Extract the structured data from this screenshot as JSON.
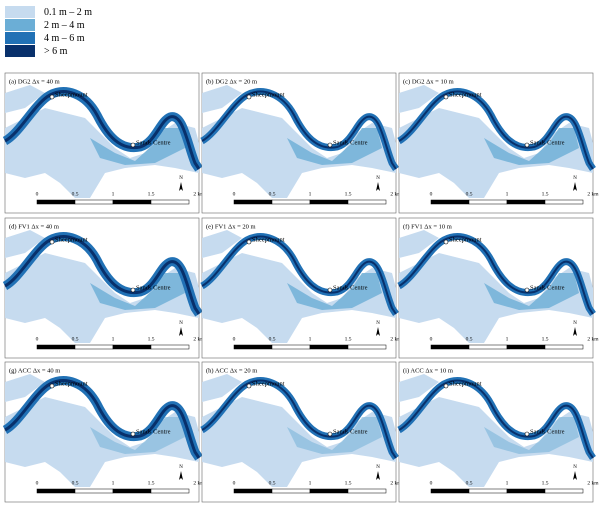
{
  "legend": [
    {
      "label": "0.1 m – 2 m",
      "color": "#c6dbef"
    },
    {
      "label": "2 m – 4 m",
      "color": "#6baed6"
    },
    {
      "label": "4 m – 6 m",
      "color": "#2171b5"
    },
    {
      "label": "> 6 m",
      "color": "#08306b"
    }
  ],
  "panels": [
    {
      "title": "(a) DG2 Δx = 40 m"
    },
    {
      "title": "(b) DG2 Δx = 20 m"
    },
    {
      "title": "(c) DG2 Δx = 10 m"
    },
    {
      "title": "(d) FV1 Δx = 40 m"
    },
    {
      "title": "(e) FV1 Δx = 20 m"
    },
    {
      "title": "(f) FV1 Δx = 10 m"
    },
    {
      "title": "(g) ACC Δx = 40 m"
    },
    {
      "title": "(h) ACC Δx = 20 m"
    },
    {
      "title": "(i) ACC Δx = 10 m"
    }
  ],
  "places": [
    "Sheepmount",
    "Sands Centre"
  ],
  "scale_labels": [
    "0",
    "0.5",
    "1",
    "1.5",
    "2 km"
  ],
  "north": "N"
}
